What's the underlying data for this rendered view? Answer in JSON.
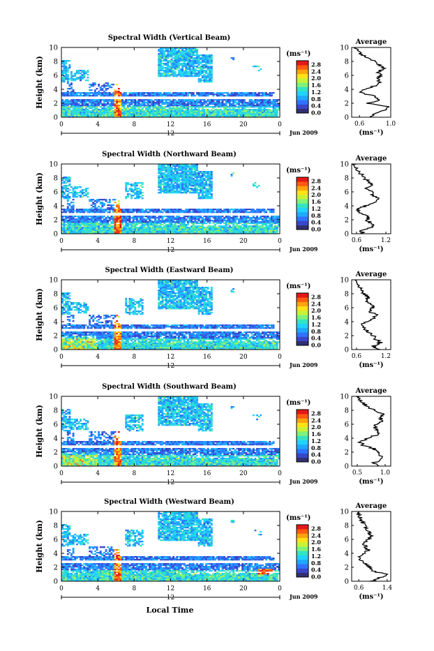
{
  "colorbar": {
    "unit": "(ms⁻¹)",
    "ticks": [
      "2.8",
      "2.4",
      "2.0",
      "1.6",
      "1.2",
      "0.8",
      "0.4",
      "0.0"
    ],
    "colors": [
      "#303070",
      "#3a46c8",
      "#2f73ff",
      "#1fa8ff",
      "#22d2ff",
      "#35e3c0",
      "#7ff27a",
      "#c8f23a",
      "#ffe21a",
      "#ffa40f",
      "#ff5a12",
      "#e31818"
    ]
  },
  "common": {
    "ylabel": "Height (km)",
    "yticks": [
      "0",
      "2",
      "4",
      "6",
      "8",
      "10"
    ],
    "xticks": [
      "0",
      "4",
      "8",
      "12",
      "16",
      "20",
      "0"
    ],
    "date_label": "Jun 2009",
    "marker_label": "12",
    "avg_title": "Average",
    "avg_xlabel": "(ms⁻¹)",
    "xlabel": "Local Time"
  },
  "chart_data": [
    {
      "type": "heatmap",
      "title": "Spectral Width (Vertical Beam)",
      "ylabel": "Height (km)",
      "xlim": [
        0,
        24
      ],
      "ylim": [
        0,
        10
      ],
      "clim": [
        0.0,
        3.0
      ],
      "profile": {
        "title": "Average",
        "xticks": [
          "0.6",
          "1.0"
        ],
        "xlim": [
          0.5,
          1.0
        ],
        "heights": [
          0,
          0.5,
          1,
          1.5,
          2,
          2.5,
          3,
          3.5,
          4,
          4.5,
          5,
          5.5,
          6,
          6.5,
          7,
          7.5,
          8,
          8.5,
          9,
          9.5,
          10
        ],
        "values": [
          0.72,
          0.78,
          0.92,
          0.98,
          0.7,
          0.86,
          0.8,
          0.62,
          0.66,
          0.8,
          0.86,
          0.82,
          0.88,
          0.84,
          0.9,
          0.86,
          0.82,
          0.7,
          0.62,
          0.58,
          0.55
        ]
      }
    },
    {
      "type": "heatmap",
      "title": "Spectral Width (Northward Beam)",
      "ylabel": "Height (km)",
      "xlim": [
        0,
        24
      ],
      "ylim": [
        0,
        10
      ],
      "clim": [
        0.0,
        3.0
      ],
      "profile": {
        "title": "Average",
        "xticks": [
          "0.6",
          "1.2"
        ],
        "xlim": [
          0.5,
          1.3
        ],
        "heights": [
          0,
          0.5,
          1,
          1.5,
          2,
          2.5,
          3,
          3.5,
          4,
          4.5,
          5,
          5.5,
          6,
          6.5,
          7,
          7.5,
          8,
          8.5,
          9,
          9.5,
          10
        ],
        "values": [
          0.75,
          0.7,
          0.95,
          0.9,
          0.8,
          0.85,
          0.65,
          0.6,
          0.8,
          0.95,
          1.05,
          0.95,
          0.9,
          0.8,
          0.95,
          0.85,
          0.75,
          0.7,
          0.65,
          0.6,
          0.55
        ]
      }
    },
    {
      "type": "heatmap",
      "title": "Spectral Width (Eastward Beam)",
      "ylabel": "Height (km)",
      "xlim": [
        0,
        24
      ],
      "ylim": [
        0,
        10
      ],
      "clim": [
        0.0,
        3.0
      ],
      "profile": {
        "title": "Average",
        "xticks": [
          "0.6",
          "1.2"
        ],
        "xlim": [
          0.5,
          1.3
        ],
        "heights": [
          0,
          0.5,
          1,
          1.5,
          2,
          2.5,
          3,
          3.5,
          4,
          4.5,
          5,
          5.5,
          6,
          6.5,
          7,
          7.5,
          8,
          8.5,
          9,
          9.5,
          10
        ],
        "values": [
          1.05,
          0.95,
          1.1,
          1.0,
          0.95,
          0.85,
          0.75,
          0.7,
          0.8,
          0.95,
          1.0,
          0.85,
          0.95,
          0.9,
          0.8,
          0.85,
          0.75,
          0.7,
          0.65,
          0.6,
          0.55
        ]
      }
    },
    {
      "type": "heatmap",
      "title": "Spectral Width (Southward Beam)",
      "ylabel": "Height (km)",
      "xlim": [
        0,
        24
      ],
      "ylim": [
        0,
        10
      ],
      "clim": [
        0.0,
        3.0
      ],
      "profile": {
        "title": "Average",
        "xticks": [
          "0.5",
          "1.0"
        ],
        "xlim": [
          0.4,
          1.1
        ],
        "heights": [
          0,
          0.5,
          1,
          1.5,
          2,
          2.5,
          3,
          3.5,
          4,
          4.5,
          5,
          5.5,
          6,
          6.5,
          7,
          7.5,
          8,
          8.5,
          9,
          9.5,
          10
        ],
        "values": [
          0.85,
          0.8,
          0.95,
          0.9,
          0.85,
          0.8,
          0.6,
          0.55,
          0.7,
          0.85,
          0.9,
          0.8,
          0.85,
          0.95,
          0.9,
          0.95,
          0.8,
          0.7,
          0.6,
          0.55,
          0.5
        ]
      }
    },
    {
      "type": "heatmap",
      "title": "Spectral Width (Westward Beam)",
      "ylabel": "Height (km)",
      "xlim": [
        0,
        24
      ],
      "ylim": [
        0,
        10
      ],
      "clim": [
        0.0,
        3.0
      ],
      "profile": {
        "title": "Average",
        "xticks": [
          "0.6",
          "1.4"
        ],
        "xlim": [
          0.4,
          1.5
        ],
        "heights": [
          0,
          0.5,
          1,
          1.5,
          2,
          2.5,
          3,
          3.5,
          4,
          4.5,
          5,
          5.5,
          6,
          6.5,
          7,
          7.5,
          8,
          8.5,
          9,
          9.5,
          10
        ],
        "values": [
          0.95,
          1.2,
          1.4,
          0.95,
          0.9,
          0.8,
          0.65,
          0.6,
          0.75,
          0.85,
          0.8,
          0.75,
          0.85,
          0.95,
          0.9,
          0.85,
          0.75,
          0.7,
          0.65,
          0.6,
          0.55
        ]
      }
    }
  ]
}
